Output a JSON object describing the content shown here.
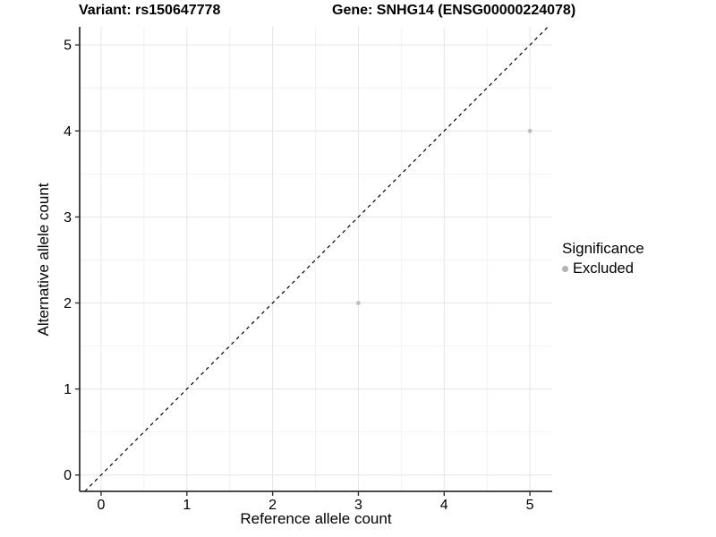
{
  "chart_data": {
    "type": "scatter",
    "title_left": "Variant: rs150647778",
    "title_right": "Gene: SNHG14 (ENSG00000224078)",
    "xlabel": "Reference allele count",
    "ylabel": "Alternative allele count",
    "x_ticks": [
      0,
      1,
      2,
      3,
      4,
      5
    ],
    "y_ticks": [
      0,
      1,
      2,
      3,
      4,
      5
    ],
    "xlim": [
      -0.25,
      5.26
    ],
    "ylim": [
      -0.19,
      5.21
    ],
    "grid": {
      "major": true,
      "minor": true
    },
    "identity_line": {
      "equation": "y = x",
      "style": "dashed",
      "color": "#000000"
    },
    "series": [
      {
        "name": "Excluded",
        "color": "#bebebe",
        "points": [
          {
            "x": 3,
            "y": 2
          },
          {
            "x": 5,
            "y": 4
          }
        ]
      }
    ],
    "legend": {
      "title": "Significance",
      "position": "right",
      "items": [
        {
          "label": "Excluded",
          "color": "#b3b3b3"
        }
      ]
    },
    "colors": {
      "background": "#ffffff",
      "grid_major": "#e6e6e6",
      "grid_minor": "#f2f2f2",
      "axis": "#333333",
      "text": "#000000"
    }
  }
}
